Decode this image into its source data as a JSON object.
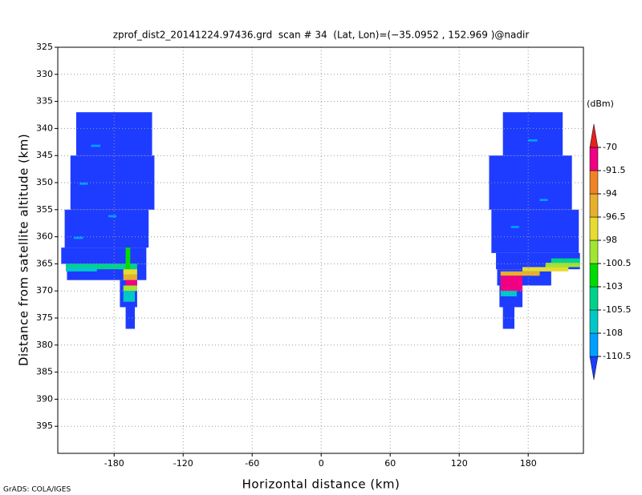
{
  "chart_data": {
    "type": "shaded",
    "title": "zprof_dist2_20141224.97436.grd  scan # 34  (Lat, Lon)=(−35.0952 , 152.969 )@nadir",
    "x_label": "Horizontal distance (km)",
    "y_label": "Distance from satellite altitude (km)",
    "footer": "GrADS: COLA/IGES",
    "xlim": [
      -229,
      228
    ],
    "ylim": [
      325,
      400
    ],
    "y_inverted": true,
    "grid": true,
    "xticks": [
      -180,
      -120,
      -60,
      0,
      60,
      120,
      180
    ],
    "yticks": [
      325,
      330,
      335,
      340,
      345,
      350,
      355,
      360,
      365,
      370,
      375,
      380,
      385,
      390,
      395
    ],
    "colorbar": {
      "unit": "(dBm)",
      "levels": [
        -110.5,
        -108,
        -105.5,
        -103,
        -100.5,
        -98,
        -96.5,
        -94,
        -91.5,
        -70
      ],
      "colors": [
        "#1e3cff",
        "#00a0ff",
        "#00c8c8",
        "#00d28c",
        "#00dc00",
        "#a0e632",
        "#e6dc32",
        "#e6af2d",
        "#f08228",
        "#f00082",
        "#e6201e"
      ]
    },
    "cells": [
      {
        "x": [
          -213,
          -147
        ],
        "y": [
          337,
          345
        ],
        "value": -112
      },
      {
        "x": [
          -218,
          -145
        ],
        "y": [
          345,
          355
        ],
        "value": -112
      },
      {
        "x": [
          -223,
          -150
        ],
        "y": [
          355,
          362
        ],
        "value": -112
      },
      {
        "x": [
          -226,
          -152
        ],
        "y": [
          362,
          365
        ],
        "value": -112
      },
      {
        "x": [
          -221,
          -152
        ],
        "y": [
          365,
          368
        ],
        "value": -112
      },
      {
        "x": [
          -175,
          -160
        ],
        "y": [
          368,
          373
        ],
        "value": -112
      },
      {
        "x": [
          -170,
          -162
        ],
        "y": [
          373,
          377
        ],
        "value": -112
      },
      {
        "x": [
          -200,
          -192
        ],
        "y": [
          343,
          343.4
        ],
        "value": -109
      },
      {
        "x": [
          -210,
          -203
        ],
        "y": [
          350,
          350.4
        ],
        "value": -109
      },
      {
        "x": [
          -185,
          -178
        ],
        "y": [
          356,
          356.4
        ],
        "value": -109
      },
      {
        "x": [
          -215,
          -207
        ],
        "y": [
          360,
          360.4
        ],
        "value": -109
      },
      {
        "x": [
          -222,
          -160
        ],
        "y": [
          365,
          366
        ],
        "value": -104
      },
      {
        "x": [
          -222,
          -195
        ],
        "y": [
          365.6,
          366.4
        ],
        "value": -107
      },
      {
        "x": [
          -170,
          -166
        ],
        "y": [
          362,
          366
        ],
        "value": -101
      },
      {
        "x": [
          -172,
          -160
        ],
        "y": [
          366,
          367
        ],
        "value": -97
      },
      {
        "x": [
          -172,
          -160
        ],
        "y": [
          367,
          368
        ],
        "value": -95
      },
      {
        "x": [
          -170,
          -160
        ],
        "y": [
          368,
          369
        ],
        "value": -91
      },
      {
        "x": [
          -172,
          -160
        ],
        "y": [
          369,
          370
        ],
        "value": -99
      },
      {
        "x": [
          -172,
          -162
        ],
        "y": [
          370,
          372
        ],
        "value": -107
      },
      {
        "x": [
          158,
          210
        ],
        "y": [
          337,
          345
        ],
        "value": -112
      },
      {
        "x": [
          146,
          218
        ],
        "y": [
          345,
          355
        ],
        "value": -112
      },
      {
        "x": [
          148,
          224
        ],
        "y": [
          355,
          363
        ],
        "value": -112
      },
      {
        "x": [
          152,
          225
        ],
        "y": [
          363,
          366
        ],
        "value": -112
      },
      {
        "x": [
          153,
          200
        ],
        "y": [
          366,
          369
        ],
        "value": -112
      },
      {
        "x": [
          155,
          175
        ],
        "y": [
          369,
          373
        ],
        "value": -112
      },
      {
        "x": [
          158,
          168
        ],
        "y": [
          373,
          377
        ],
        "value": -112
      },
      {
        "x": [
          180,
          188
        ],
        "y": [
          342,
          342.4
        ],
        "value": -109
      },
      {
        "x": [
          190,
          197
        ],
        "y": [
          353,
          353.4
        ],
        "value": -109
      },
      {
        "x": [
          165,
          172
        ],
        "y": [
          358,
          358.4
        ],
        "value": -109
      },
      {
        "x": [
          200,
          225
        ],
        "y": [
          364,
          364.8
        ],
        "value": -104
      },
      {
        "x": [
          195,
          225
        ],
        "y": [
          364.8,
          365.6
        ],
        "value": -99
      },
      {
        "x": [
          175,
          215
        ],
        "y": [
          365.6,
          366.4
        ],
        "value": -97
      },
      {
        "x": [
          156,
          190
        ],
        "y": [
          366.4,
          367.2
        ],
        "value": -95
      },
      {
        "x": [
          156,
          175
        ],
        "y": [
          367.2,
          370
        ],
        "value": -91
      },
      {
        "x": [
          156,
          170
        ],
        "y": [
          370,
          371
        ],
        "value": -107
      }
    ]
  }
}
